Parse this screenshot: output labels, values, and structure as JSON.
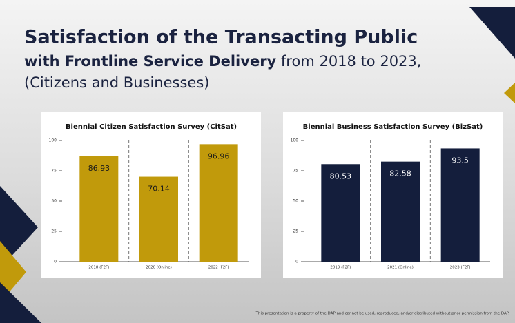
{
  "slide": {
    "title_line1": "Satisfaction of the Transacting Public",
    "title_line2_bold": "with Frontline Service Delivery",
    "title_line2_rest": " from 2018 to 2023,",
    "title_line3": "(Citizens and Businesses)",
    "footer": "This presentation is a property of the DAP and cannot be used, reproduced, and/or distributed without prior permission from the DAP."
  },
  "chart_data": [
    {
      "type": "bar",
      "title": "Biennial Citizen Satisfaction Survey (CitSat)",
      "categories": [
        "2018 (F2F)",
        "2020 (Online)",
        "2022 (F2F)"
      ],
      "values": [
        86.93,
        70.14,
        96.96
      ],
      "color": "#c19a0b",
      "label_color": "#1a1a1a",
      "ylim": [
        0,
        100
      ],
      "yticks": [
        0,
        25,
        50,
        75,
        100
      ]
    },
    {
      "type": "bar",
      "title": "Biennial Business Satisfaction Survey (BizSat)",
      "categories": [
        "2019 (F2F)",
        "2021 (Online)",
        "2023 (F2F)"
      ],
      "values": [
        80.53,
        82.58,
        93.5
      ],
      "color": "#141e3c",
      "label_color": "#ffffff",
      "ylim": [
        0,
        100
      ],
      "yticks": [
        0,
        25,
        50,
        75,
        100
      ]
    }
  ]
}
